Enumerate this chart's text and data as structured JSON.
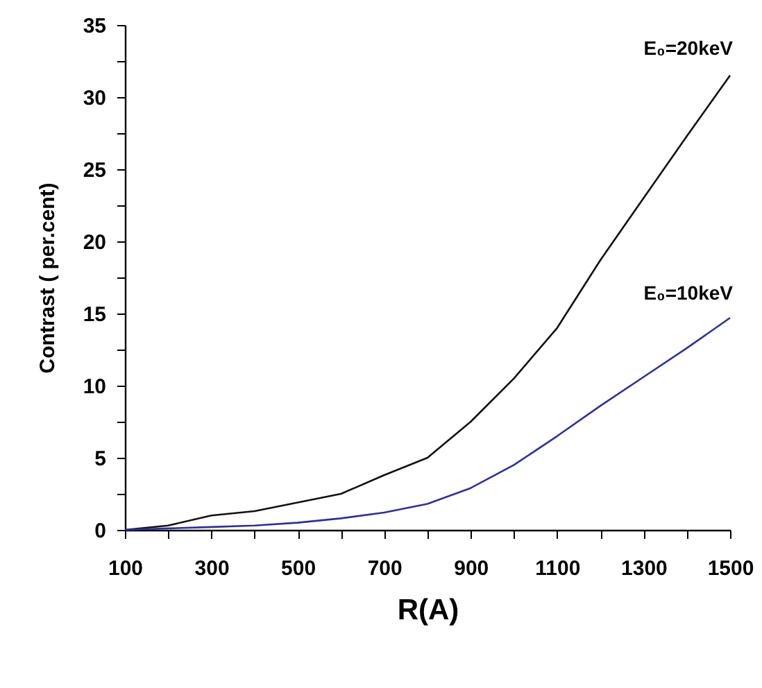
{
  "chart_data": {
    "type": "line",
    "xlabel": "R(A)",
    "ylabel": "Contrast ( per.cent)",
    "x": [
      100,
      200,
      300,
      400,
      500,
      600,
      700,
      800,
      900,
      1000,
      1100,
      1200,
      1300,
      1400,
      1500
    ],
    "series": [
      {
        "name": "E₀=20keV",
        "color": "#111111",
        "values": [
          0,
          0.3,
          1,
          1.3,
          1.9,
          2.5,
          3.8,
          5,
          7.5,
          10.5,
          14,
          18.7,
          23,
          27.3,
          31.5
        ]
      },
      {
        "name": "E₀=10keV",
        "color": "#2e3192",
        "values": [
          0,
          0.1,
          0.2,
          0.3,
          0.5,
          0.8,
          1.2,
          1.8,
          2.9,
          4.5,
          6.5,
          8.6,
          10.6,
          12.6,
          14.7
        ]
      }
    ],
    "xlim": [
      100,
      1500
    ],
    "xticks": [
      100,
      {
        "value": 200,
        "label": null
      },
      300,
      {
        "value": 400,
        "label": null
      },
      500,
      {
        "value": 600,
        "label": null
      },
      700,
      {
        "value": 800,
        "label": null
      },
      900,
      {
        "value": 1000,
        "label": null
      },
      1100,
      {
        "value": 1200,
        "label": null
      },
      1300,
      {
        "value": 1400,
        "label": null
      },
      1500
    ],
    "ylim": [
      0,
      35
    ],
    "yticks": [
      0,
      {
        "value": 2.5,
        "label": null
      },
      5,
      {
        "value": 7.5,
        "label": null
      },
      10,
      {
        "value": 12.5,
        "label": null
      },
      15,
      {
        "value": 17.5,
        "label": null
      },
      20,
      {
        "value": 22.5,
        "label": null
      },
      25,
      {
        "value": 27.5,
        "label": null
      },
      30,
      {
        "value": 32.5,
        "label": null
      },
      35
    ],
    "grid": false,
    "legend": false,
    "marker": "none",
    "line_style": "solid"
  }
}
